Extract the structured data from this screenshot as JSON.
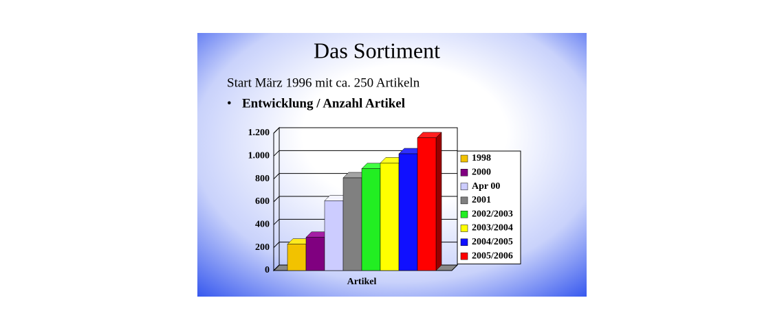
{
  "chart_data": {
    "type": "bar3d",
    "title": "Das Sortiment",
    "subtitle": "Start März 1996 mit ca. 250 Artikeln",
    "bullet": "Entwicklung / Anzahl Artikel",
    "x_label": "Artikel",
    "categories": [
      "Artikel"
    ],
    "series": [
      {
        "name": "1998",
        "color": "#f2c200",
        "values": [
          230
        ]
      },
      {
        "name": "2000",
        "color": "#800080",
        "values": [
          290
        ]
      },
      {
        "name": "Apr 00",
        "color": "#ccccff",
        "values": [
          610
        ]
      },
      {
        "name": "2001",
        "color": "#808080",
        "values": [
          810
        ]
      },
      {
        "name": "2002/2003",
        "color": "#22ee22",
        "values": [
          890
        ]
      },
      {
        "name": "2003/2004",
        "color": "#ffff00",
        "values": [
          940
        ]
      },
      {
        "name": "2004/2005",
        "color": "#1010ff",
        "values": [
          1020
        ]
      },
      {
        "name": "2005/2006",
        "color": "#ff0000",
        "values": [
          1160
        ]
      }
    ],
    "ylim": [
      0,
      1200
    ],
    "yticks": [
      0,
      200,
      400,
      600,
      800,
      {
        "value": 1000,
        "label": "1.000"
      },
      {
        "value": 1200,
        "label": "1.200"
      }
    ],
    "grid": true,
    "legend": "right"
  }
}
